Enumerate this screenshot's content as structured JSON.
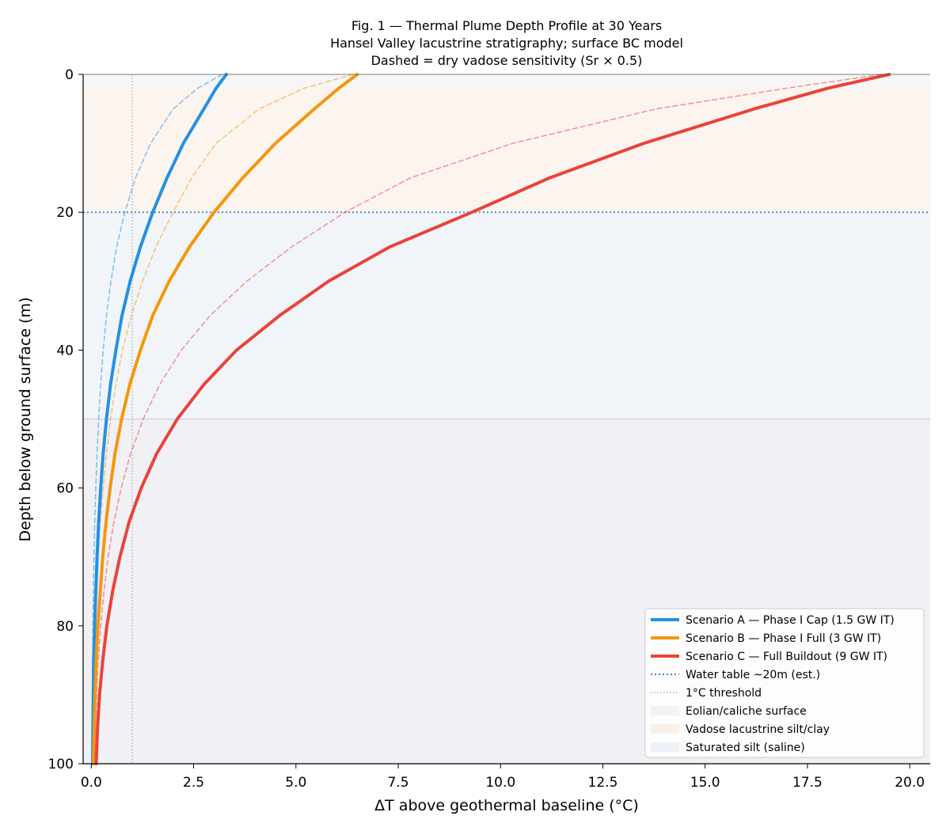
{
  "chart_data": {
    "type": "line",
    "title": "Fig. 1 — Thermal Plume Depth Profile at 30 Years",
    "subtitle": "Hansel Valley lacustrine stratigraphy; surface BC model",
    "subtitle2": "Dashed = dry vadose sensitivity (Sr × 0.5)",
    "xlabel": "ΔT above geothermal baseline (°C)",
    "ylabel": "Depth below ground surface (m)",
    "xlim": [
      -0.2,
      20.5
    ],
    "ylim": [
      100,
      0
    ],
    "xticks": [
      "0.0",
      "2.5",
      "5.0",
      "7.5",
      "10.0",
      "12.5",
      "15.0",
      "17.5",
      "20.0"
    ],
    "xtick_values": [
      0,
      2.5,
      5,
      7.5,
      10,
      12.5,
      15,
      17.5,
      20
    ],
    "yticks": [
      "0",
      "20",
      "40",
      "60",
      "80",
      "100"
    ],
    "ytick_values": [
      0,
      20,
      40,
      60,
      80,
      100
    ],
    "grid": false,
    "legend_position": "bottom-right",
    "layers": [
      {
        "name": "Eolian/caliche surface",
        "top": 0,
        "bottom": 2,
        "color": "#e9e9e9"
      },
      {
        "name": "Vadose lacustrine silt/clay",
        "top": 2,
        "bottom": 20,
        "color": "#f8e4d6"
      },
      {
        "name": "Saturated silt (saline)",
        "top": 20,
        "bottom": 50,
        "color": "#dde6f0"
      },
      {
        "name": "",
        "top": 50,
        "bottom": 100,
        "color": "#d9d9e6"
      }
    ],
    "water_table": {
      "name": "Water table ~20m (est.)",
      "depth": 20,
      "color": "#5b8fc0"
    },
    "threshold": {
      "name": "1°C threshold",
      "value": 1,
      "color": "#b0b0b0"
    },
    "depths": [
      0,
      2,
      5,
      10,
      15,
      20,
      25,
      30,
      35,
      40,
      45,
      50,
      55,
      60,
      65,
      70,
      75,
      80,
      85,
      90,
      95,
      100
    ],
    "series": [
      {
        "name": "Scenario A — Phase I Cap (1.5 GW IT)",
        "color": "#2490e2",
        "dashed": false,
        "values": [
          3.3,
          3.05,
          2.75,
          2.25,
          1.85,
          1.5,
          1.2,
          0.95,
          0.75,
          0.6,
          0.47,
          0.37,
          0.29,
          0.23,
          0.18,
          0.14,
          0.11,
          0.08,
          0.06,
          0.05,
          0.04,
          0.03
        ]
      },
      {
        "name": "Scenario B — Phase I Full (3 GW IT)",
        "color": "#f6960d",
        "dashed": false,
        "values": [
          6.5,
          6.05,
          5.45,
          4.5,
          3.7,
          3.0,
          2.4,
          1.9,
          1.5,
          1.2,
          0.94,
          0.74,
          0.58,
          0.46,
          0.36,
          0.28,
          0.22,
          0.16,
          0.12,
          0.09,
          0.07,
          0.05
        ]
      },
      {
        "name": "Scenario C — Full Buildout (9 GW IT)",
        "color": "#ea4338",
        "dashed": false,
        "values": [
          19.5,
          18.0,
          16.2,
          13.5,
          11.2,
          9.3,
          7.3,
          5.8,
          4.6,
          3.55,
          2.75,
          2.1,
          1.6,
          1.22,
          0.92,
          0.7,
          0.52,
          0.38,
          0.28,
          0.2,
          0.15,
          0.12
        ]
      },
      {
        "name": "",
        "color": "#2490e2",
        "dashed": true,
        "values": [
          3.2,
          2.6,
          2.0,
          1.45,
          1.08,
          0.82,
          0.62,
          0.48,
          0.37,
          0.29,
          0.23,
          0.18,
          0.14,
          0.11,
          0.085,
          0.065,
          0.05,
          0.04,
          0.03,
          0.02,
          0.015,
          0.01
        ]
      },
      {
        "name": "",
        "color": "#f6960d",
        "dashed": true,
        "values": [
          6.4,
          5.2,
          4.1,
          3.05,
          2.45,
          2.0,
          1.58,
          1.25,
          0.98,
          0.76,
          0.6,
          0.47,
          0.37,
          0.29,
          0.22,
          0.17,
          0.13,
          0.1,
          0.075,
          0.055,
          0.04,
          0.03
        ]
      },
      {
        "name": "",
        "color": "#ea4338",
        "dashed": true,
        "values": [
          19.3,
          17.0,
          13.8,
          10.3,
          7.8,
          6.2,
          4.9,
          3.8,
          2.9,
          2.2,
          1.67,
          1.27,
          0.96,
          0.73,
          0.55,
          0.41,
          0.31,
          0.23,
          0.17,
          0.13,
          0.1,
          0.08
        ]
      }
    ]
  }
}
